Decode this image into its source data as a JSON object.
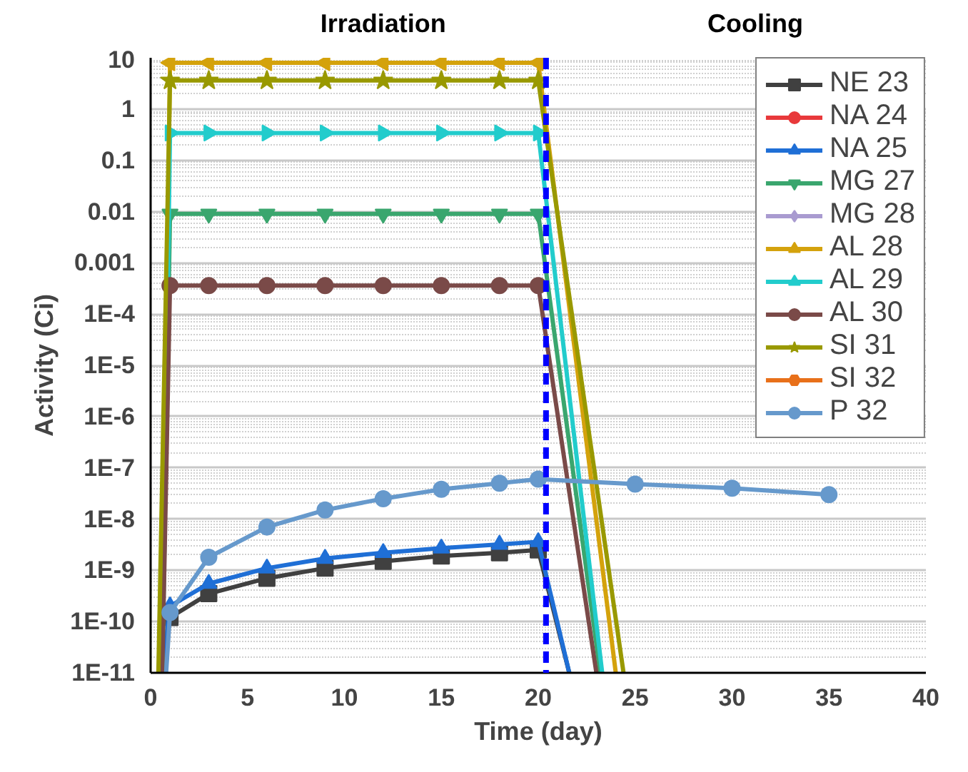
{
  "chart_data": {
    "type": "line",
    "xlabel": "Time (day)",
    "ylabel": "Activity (Ci)",
    "log": "y",
    "annotations": [
      "Irradiation",
      "Cooling"
    ],
    "xlim": [
      0,
      40
    ],
    "xticks": [
      0,
      5,
      10,
      15,
      20,
      25,
      30,
      35,
      40
    ],
    "ylim": [
      1e-11,
      10
    ],
    "yticks": [
      10,
      1,
      0.1,
      0.01,
      0.001,
      {
        "value": 0.0001,
        "label": "1E-4"
      },
      {
        "value": 1e-05,
        "label": "1E-5"
      },
      {
        "value": 1e-06,
        "label": "1E-6"
      },
      {
        "value": 1e-07,
        "label": "1E-7"
      },
      {
        "value": 1e-08,
        "label": "1E-8"
      },
      {
        "value": 1e-09,
        "label": "1E-9"
      },
      {
        "value": 1e-10,
        "label": "1E-10"
      },
      {
        "value": 1e-11,
        "label": "1E-11"
      }
    ],
    "grid": "y",
    "legend": "top right",
    "ref_lines": [
      {
        "axis": "x",
        "value": 20.4,
        "label": null,
        "color": "#0000ff",
        "line_style": "dashed"
      }
    ],
    "series": [
      {
        "name": "NE 23",
        "color": "#404040",
        "marker": "square",
        "x": [
          0.6,
          1,
          3,
          6,
          9,
          12,
          15,
          18,
          20,
          21.6
        ],
        "values": [
          1e-11,
          1.2e-10,
          3.5e-10,
          7e-10,
          1.1e-09,
          1.5e-09,
          1.9e-09,
          2.2e-09,
          2.5e-09,
          1e-11
        ]
      },
      {
        "name": "NA 24",
        "color": "#e8393b",
        "marker": "circle"
      },
      {
        "name": "NA 25",
        "color": "#1f6fd6",
        "marker": "triangle",
        "x": [
          0.6,
          1,
          3,
          6,
          9,
          12,
          15,
          18,
          20,
          21.6
        ],
        "values": [
          1e-11,
          2e-10,
          5.5e-10,
          1.1e-09,
          1.7e-09,
          2.2e-09,
          2.7e-09,
          3.2e-09,
          3.6e-09,
          1e-11
        ]
      },
      {
        "name": "MG 27",
        "color": "#3aa66e",
        "marker": "triangle_down",
        "x": [
          0.6,
          1,
          3,
          6,
          9,
          12,
          15,
          18,
          20,
          23.2
        ],
        "values": [
          1e-11,
          0.009,
          0.009,
          0.009,
          0.009,
          0.009,
          0.009,
          0.009,
          0.009,
          1e-11
        ]
      },
      {
        "name": "MG 28",
        "color": "#a99bd0",
        "marker": "diamond"
      },
      {
        "name": "AL 28",
        "color": "#d4a20c",
        "marker": "triangle_left",
        "x": [
          0.6,
          1,
          3,
          6,
          9,
          12,
          15,
          18,
          20,
          24.0
        ],
        "values": [
          1e-11,
          8,
          8,
          8,
          8,
          8,
          8,
          8,
          8,
          1e-11
        ]
      },
      {
        "name": "AL 29",
        "color": "#22cccc",
        "marker": "triangle_right",
        "x": [
          0.6,
          1,
          3,
          6,
          9,
          12,
          15,
          18,
          20,
          23.3
        ],
        "values": [
          1e-11,
          0.34,
          0.34,
          0.34,
          0.34,
          0.34,
          0.34,
          0.34,
          0.34,
          1e-11
        ]
      },
      {
        "name": "AL 30",
        "color": "#7a4a48",
        "marker": "circle",
        "x": [
          0.6,
          1,
          3,
          6,
          9,
          12,
          15,
          18,
          20,
          23.0
        ],
        "values": [
          1e-11,
          0.00036,
          0.00036,
          0.00036,
          0.00036,
          0.00036,
          0.00036,
          0.00036,
          0.00036,
          1e-11
        ]
      },
      {
        "name": "SI 31",
        "color": "#999900",
        "marker": "star",
        "x": [
          0.4,
          1,
          3,
          6,
          9,
          12,
          15,
          18,
          20,
          24.4
        ],
        "values": [
          1e-11,
          3.6,
          3.6,
          3.6,
          3.6,
          3.6,
          3.6,
          3.6,
          3.6,
          1e-11
        ]
      },
      {
        "name": "SI 32",
        "color": "#e8701a",
        "marker": "pentagon"
      },
      {
        "name": "P 32",
        "color": "#6699cc",
        "marker": "circle",
        "x": [
          0.8,
          1,
          3,
          6,
          9,
          12,
          15,
          18,
          20,
          25,
          30,
          35
        ],
        "values": [
          1e-11,
          1.5e-10,
          1.8e-09,
          7e-09,
          1.5e-08,
          2.5e-08,
          3.8e-08,
          5e-08,
          6e-08,
          4.8e-08,
          4e-08,
          3e-08
        ]
      }
    ]
  }
}
